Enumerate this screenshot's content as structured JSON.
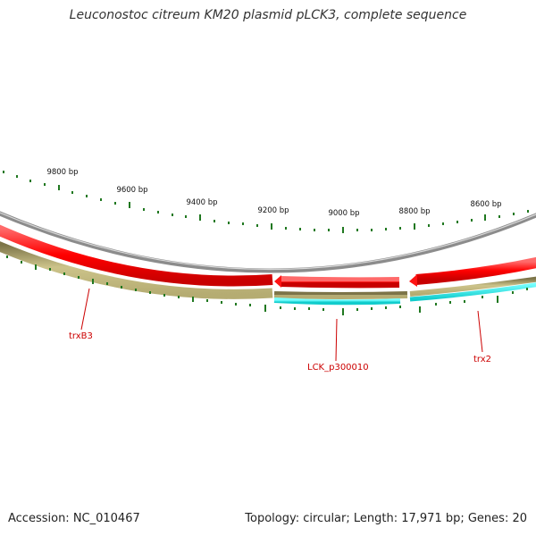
{
  "title": "Leuconostoc citreum KM20 plasmid pLCK3, complete sequence",
  "footer": {
    "accession": "Accession: NC_010467",
    "summary": "Topology: circular; Length: 17,971 bp; Genes: 20"
  },
  "ruler": {
    "labels": [
      "9800 bp",
      "9600 bp",
      "9400 bp",
      "9200 bp",
      "9000 bp",
      "8800 bp",
      "8600 bp"
    ]
  },
  "genes": [
    {
      "name": "trxB3",
      "color": "#cc0000"
    },
    {
      "name": "LCK_p300010",
      "color": "#cc0000"
    },
    {
      "name": "trx2",
      "color": "#cc0000"
    }
  ],
  "colors": {
    "backbone": "#8c8c8c",
    "forward_track": "#e60000",
    "reverse_track": "#c8bf80",
    "highlight_track": "#33e6e6",
    "ticks": "#207820",
    "gene_labels": "#cc0000"
  }
}
